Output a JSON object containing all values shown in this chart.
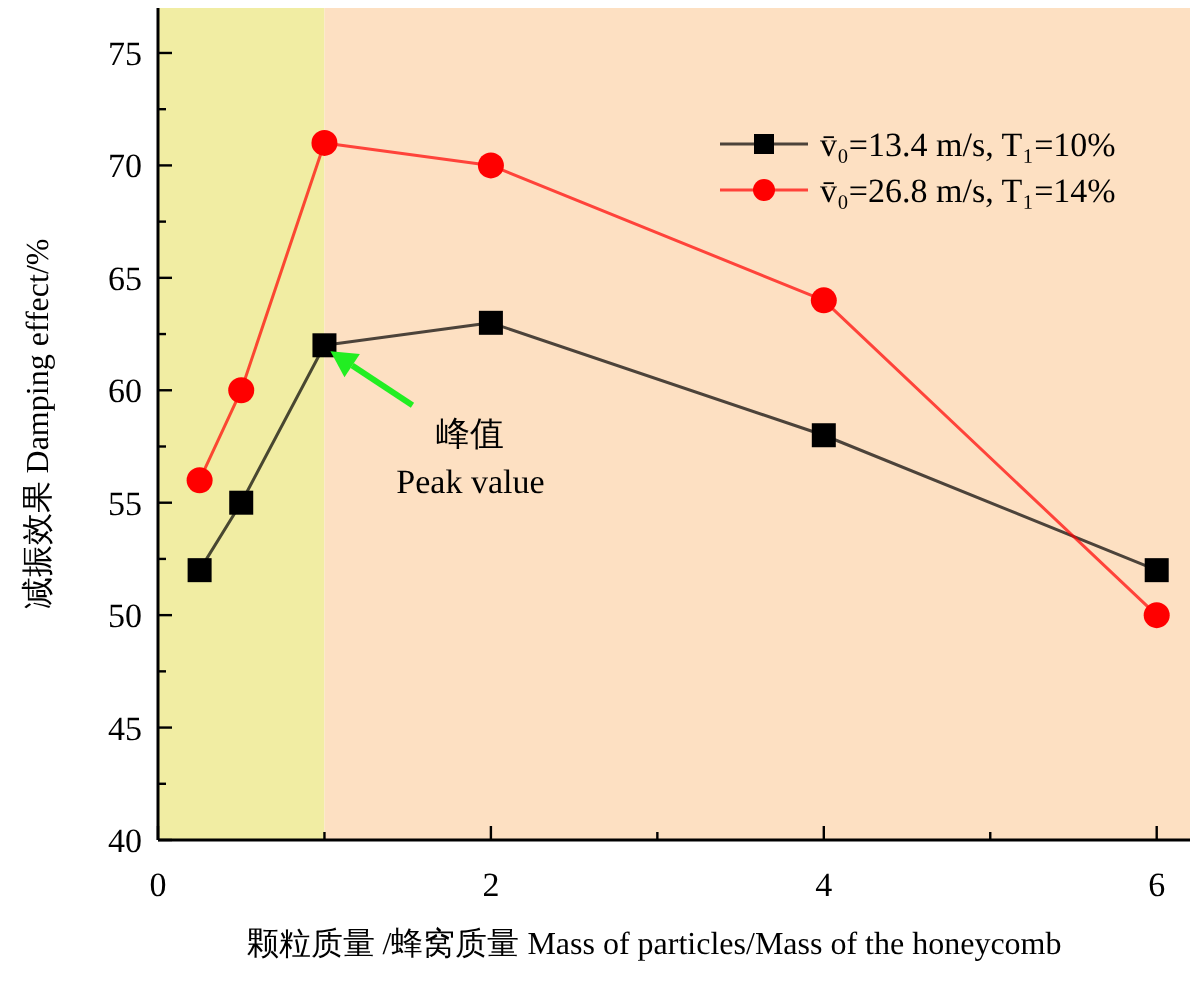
{
  "chart_data": {
    "type": "line",
    "xlabel": "颗粒质量 /蜂窝质量 Mass of particles/Mass of the honeycomb",
    "ylabel": "减振效果 Damping effect/%",
    "xlim": [
      0,
      6.2
    ],
    "ylim": [
      40,
      77
    ],
    "xticks": [
      0,
      {
        "value": 1,
        "label": null
      },
      2,
      {
        "value": 3,
        "label": null
      },
      4,
      {
        "value": 5,
        "label": null
      },
      6
    ],
    "yticks": [
      40,
      {
        "value": 42.5,
        "label": null
      },
      45,
      {
        "value": 47.5,
        "label": null
      },
      50,
      {
        "value": 52.5,
        "label": null
      },
      55,
      {
        "value": 57.5,
        "label": null
      },
      60,
      {
        "value": 62.5,
        "label": null
      },
      65,
      {
        "value": 67.5,
        "label": null
      },
      70,
      {
        "value": 72.5,
        "label": null
      },
      75
    ],
    "x": [
      0.25,
      0.5,
      1,
      2,
      4,
      6
    ],
    "series": [
      {
        "name": "v̄₀=13.4 m/s, T₁=10%",
        "color": "#000000",
        "marker": "square",
        "values": [
          52,
          55,
          62,
          63,
          58,
          52
        ]
      },
      {
        "name": "v̄₀=26.8 m/s, T₁=14%",
        "color": "#ff0000",
        "marker": "circle",
        "values": [
          56,
          60,
          71,
          70,
          64,
          50
        ]
      }
    ],
    "bands": [
      {
        "axis": "x",
        "from": 0,
        "to": 1,
        "color": "#f1eda3"
      },
      {
        "axis": "x",
        "from": 1,
        "to": 6.2,
        "color": "#fde0c2"
      }
    ],
    "annotations": [
      {
        "text": "峰值\nPeak value",
        "x": 1,
        "y": 62
      }
    ],
    "legend": "top right",
    "grid": false
  }
}
